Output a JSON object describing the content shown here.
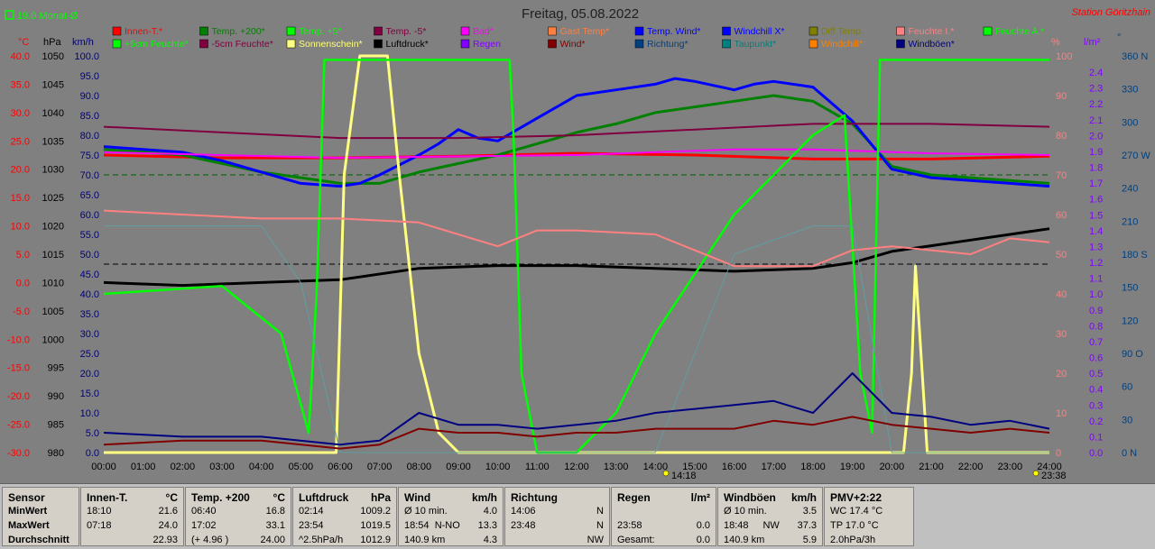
{
  "header": {
    "title": "Freitag, 05.08.2022",
    "station": "Station Göritzhain",
    "month_avg": "19.0 Monat-Ø"
  },
  "axes": {
    "temp_unit": "°C",
    "pressure_unit": "hPa",
    "speed_unit": "km/h",
    "percent_unit": "%",
    "rain_unit": "l/m²",
    "dir_unit": "°",
    "temp_ticks": [
      "40.0",
      "35.0",
      "30.0",
      "25.0",
      "20.0",
      "15.0",
      "10.0",
      "5.0",
      "0.0",
      "-5.0",
      "-10.0",
      "-15.0",
      "-20.0",
      "-25.0",
      "-30.0"
    ],
    "pressure_ticks": [
      "1050",
      "1045",
      "1040",
      "1035",
      "1030",
      "1025",
      "1020",
      "1015",
      "1010",
      "1005",
      "1000",
      "995",
      "990",
      "985",
      "980"
    ],
    "speed_ticks": [
      "100.0",
      "95.0",
      "90.0",
      "85.0",
      "80.0",
      "75.0",
      "70.0",
      "65.0",
      "60.0",
      "55.0",
      "50.0",
      "45.0",
      "40.0",
      "35.0",
      "30.0",
      "25.0",
      "20.0",
      "15.0",
      "10.0",
      "5.0",
      "0.0"
    ],
    "percent_ticks": [
      "100",
      "90",
      "80",
      "70",
      "60",
      "50",
      "40",
      "30",
      "20",
      "10",
      "0"
    ],
    "rain_ticks": [
      "2.4",
      "2.3",
      "2.2",
      "2.1",
      "2.0",
      "1.9",
      "1.8",
      "1.7",
      "1.6",
      "1.5",
      "1.4",
      "1.3",
      "1.2",
      "1.1",
      "1.0",
      "0.9",
      "0.8",
      "0.7",
      "0.6",
      "0.5",
      "0.4",
      "0.3",
      "0.2",
      "0.1",
      "0.0"
    ],
    "dir_ticks": [
      "360 N",
      "330",
      "300",
      "270 W",
      "240",
      "210",
      "180 S",
      "150",
      "120",
      "90 O",
      "60",
      "30",
      "0 N"
    ],
    "time_ticks": [
      "00:00",
      "01:00",
      "02:00",
      "03:00",
      "04:00",
      "05:00",
      "06:00",
      "07:00",
      "08:00",
      "09:00",
      "10:00",
      "11:00",
      "12:00",
      "13:00",
      "14:00",
      "15:00",
      "16:00",
      "17:00",
      "18:00",
      "19:00",
      "20:00",
      "21:00",
      "22:00",
      "23:00",
      "24:00"
    ],
    "sunrise_label": "14:18",
    "sunset_label": "23:38"
  },
  "legend": [
    {
      "label": "Innen-T.*",
      "color": "#ff0000"
    },
    {
      "label": "Temp. +200*",
      "color": "#008000"
    },
    {
      "label": "Temp. +5*",
      "color": "#00ff00"
    },
    {
      "label": "Temp. -5*",
      "color": "#800040"
    },
    {
      "label": "Bad*",
      "color": "#ff00ff"
    },
    {
      "label": "Gast Temp*",
      "color": "#ff8040"
    },
    {
      "label": "Temp. Wind*",
      "color": "#0000ff"
    },
    {
      "label": "Windchill X*",
      "color": "#0000ff"
    },
    {
      "label": "Diff Temp.",
      "color": "#808000"
    },
    {
      "label": "Feuchte I.*",
      "color": "#ff8080"
    },
    {
      "label": "Feuchte A.*",
      "color": "#00ff00"
    },
    {
      "label": "+5cm Feuchte*",
      "color": "#00ff00"
    },
    {
      "label": "-5cm Feuchte*",
      "color": "#800040"
    },
    {
      "label": "Sonnenschein*",
      "color": "#ffff80"
    },
    {
      "label": "Luftdruck*",
      "color": "#000000"
    },
    {
      "label": "Regen",
      "color": "#8000ff"
    },
    {
      "label": "Wind*",
      "color": "#800000"
    },
    {
      "label": "Richtung*",
      "color": "#004080"
    },
    {
      "label": "Taupunkt*",
      "color": "#008080"
    },
    {
      "label": "Windchill*",
      "color": "#ff8000"
    },
    {
      "label": "Windböen*",
      "color": "#000080"
    }
  ],
  "chart_data": {
    "type": "line",
    "x_unit": "hour of day",
    "xlim": [
      0,
      24
    ],
    "temp_ylim": [
      -30,
      40
    ],
    "pressure_ylim": [
      980,
      1050
    ],
    "speed_ylim": [
      0,
      100
    ],
    "percent_ylim": [
      0,
      100
    ],
    "series": [
      {
        "name": "Innen-T.*",
        "unit": "°C",
        "x": [
          0,
          3,
          6,
          9,
          12,
          15,
          18,
          21,
          24
        ],
        "y": [
          22.5,
          22.0,
          22.0,
          22.3,
          22.8,
          22.5,
          21.8,
          21.8,
          22.3
        ]
      },
      {
        "name": "Temp. +200*",
        "unit": "°C",
        "x": [
          0,
          2,
          3,
          4,
          5,
          6,
          7,
          8,
          9,
          10,
          11,
          12,
          13,
          14,
          15,
          16,
          17,
          18,
          19,
          20,
          21,
          22,
          23,
          24
        ],
        "y": [
          23.5,
          22.5,
          21.0,
          19.5,
          18.5,
          17.5,
          17.5,
          19.5,
          21.0,
          22.5,
          24.5,
          26.5,
          28.0,
          30.0,
          31.0,
          32.0,
          33.0,
          32.0,
          28.0,
          20.5,
          19.0,
          18.5,
          18.0,
          17.5
        ]
      },
      {
        "name": "Temp. Wind*",
        "unit": "°C",
        "x": [
          0,
          2,
          3,
          4,
          5,
          6,
          6.5,
          7,
          8,
          8.5,
          9,
          9.5,
          10,
          11,
          12,
          13,
          14,
          14.5,
          15,
          16,
          16.5,
          17,
          18,
          19,
          20,
          21,
          22,
          23,
          24
        ],
        "y": [
          24.0,
          23.0,
          21.5,
          19.5,
          17.5,
          17.0,
          17.5,
          19.0,
          22.5,
          24.5,
          27.0,
          25.5,
          25.0,
          29.0,
          33.0,
          34.0,
          35.0,
          36.0,
          35.5,
          34.0,
          35.0,
          35.5,
          34.5,
          28.5,
          20.0,
          18.5,
          18.0,
          17.5,
          17.0
        ]
      },
      {
        "name": "Temp. -5*",
        "unit": "°C",
        "x": [
          0,
          3,
          6,
          9,
          12,
          15,
          18,
          21,
          24
        ],
        "y": [
          27.5,
          26.5,
          25.5,
          25.5,
          26.0,
          27.0,
          28.0,
          28.0,
          27.5
        ]
      },
      {
        "name": "Bad*",
        "unit": "°C",
        "x": [
          0,
          6,
          12,
          16,
          18,
          21,
          24
        ],
        "y": [
          23.0,
          22.0,
          22.5,
          23.5,
          23.5,
          22.8,
          22.5
        ]
      },
      {
        "name": "Luftdruck*",
        "unit": "hPa",
        "x": [
          0,
          2,
          4,
          6,
          8,
          10,
          12,
          14,
          16,
          18,
          19,
          20,
          21,
          22,
          23,
          24
        ],
        "y": [
          1010.0,
          1009.5,
          1010.0,
          1010.5,
          1012.5,
          1013.0,
          1013.0,
          1012.5,
          1012.0,
          1012.5,
          1013.5,
          1015.5,
          1016.5,
          1017.5,
          1018.5,
          1019.5
        ]
      },
      {
        "name": "Sonnenschein*",
        "unit": "%",
        "x": [
          0,
          5.9,
          6.1,
          6.5,
          7.2,
          7.5,
          8.0,
          8.5,
          9,
          20.3,
          20.5,
          20.6,
          20.9,
          24
        ],
        "y": [
          0,
          0,
          70,
          100,
          100,
          70,
          25,
          5,
          0,
          0,
          20,
          47,
          0,
          0
        ]
      },
      {
        "name": "Feuchte A.*",
        "unit": "%",
        "x": [
          0,
          3,
          4.5,
          5.2,
          5.4,
          5.6,
          7,
          10.3,
          10.4,
          10.6,
          11,
          12,
          13,
          14,
          16,
          18,
          18.8,
          19.2,
          19.5,
          19.7,
          20,
          24
        ],
        "y": [
          40,
          42,
          30,
          5,
          40,
          99,
          99,
          99,
          80,
          20,
          0,
          0,
          10,
          30,
          60,
          80,
          85,
          20,
          5,
          99,
          99,
          99
        ]
      },
      {
        "name": "Feuchte I.*",
        "unit": "%",
        "x": [
          0,
          2,
          4,
          6,
          8,
          10,
          11,
          12,
          14,
          16,
          17,
          18,
          19,
          20,
          21,
          22,
          23,
          24
        ],
        "y": [
          61,
          60,
          59,
          59,
          58,
          52,
          56,
          56,
          55,
          47,
          47,
          47,
          51,
          52,
          51,
          50,
          54,
          53
        ]
      },
      {
        "name": "Taupunkt*",
        "unit": "°C",
        "x": [
          0,
          2,
          4,
          5,
          6,
          8,
          10,
          12,
          14,
          16,
          18,
          19,
          20,
          21,
          24
        ],
        "y": [
          10,
          10,
          10,
          0,
          -30,
          -30,
          -30,
          -30,
          -30,
          5,
          10,
          10,
          -30,
          -30,
          -30
        ]
      },
      {
        "name": "Windböen*",
        "unit": "km/h",
        "x": [
          0,
          2,
          4,
          6,
          7,
          8,
          9,
          10,
          11,
          12,
          13,
          14,
          15,
          16,
          17,
          18,
          19,
          20,
          21,
          22,
          23,
          24
        ],
        "y": [
          5,
          4,
          4,
          2,
          3,
          10,
          7,
          7,
          6,
          7,
          8,
          10,
          11,
          12,
          13,
          10,
          20,
          10,
          9,
          7,
          8,
          6
        ]
      },
      {
        "name": "Wind*",
        "unit": "km/h",
        "x": [
          0,
          2,
          4,
          6,
          7,
          8,
          9,
          10,
          11,
          12,
          13,
          14,
          15,
          16,
          17,
          18,
          19,
          20,
          21,
          22,
          23,
          24
        ],
        "y": [
          2,
          3,
          3,
          1,
          2,
          6,
          5,
          5,
          4,
          5,
          5,
          6,
          6,
          6,
          8,
          7,
          9,
          7,
          6,
          5,
          6,
          5
        ]
      }
    ]
  },
  "stats": {
    "sensor": {
      "title": "Sensor",
      "rows": [
        "MinWert",
        "MaxWert",
        "Durchschnitt"
      ]
    },
    "innen": {
      "title": "Innen-T.",
      "unit": "°C",
      "rows": [
        [
          "18:10",
          "21.6"
        ],
        [
          "07:18",
          "24.0"
        ],
        [
          "",
          "22.93"
        ]
      ]
    },
    "temp200": {
      "title": "Temp. +200",
      "unit": "°C",
      "rows": [
        [
          "06:40",
          "16.8"
        ],
        [
          "17:02",
          "33.1"
        ],
        [
          "(+ 4.96 )",
          "24.00"
        ]
      ]
    },
    "luftdruck": {
      "title": "Luftdruck",
      "unit": "hPa",
      "rows": [
        [
          "02:14",
          "1009.2"
        ],
        [
          "23:54",
          "1019.5"
        ],
        [
          "^2.5hPa/h",
          "1012.9"
        ]
      ]
    },
    "wind": {
      "title": "Wind",
      "unit": "km/h",
      "rows": [
        [
          "Ø 10 min.",
          "",
          "4.0"
        ],
        [
          "18:54",
          "N-NO",
          "13.3"
        ],
        [
          "140.9 km",
          "",
          "4.3"
        ]
      ]
    },
    "richtung": {
      "title": "Richtung",
      "unit": "",
      "rows": [
        [
          "14:06",
          "N"
        ],
        [
          "23:48",
          "N"
        ],
        [
          "",
          "NW"
        ]
      ]
    },
    "regen": {
      "title": "Regen",
      "unit": "l/m²",
      "rows": [
        [
          "",
          ""
        ],
        [
          "23:58",
          "0.0"
        ],
        [
          "Gesamt:",
          "0.0"
        ]
      ]
    },
    "windboeen": {
      "title": "Windböen",
      "unit": "km/h",
      "rows": [
        [
          "Ø 10 min.",
          "",
          "3.5"
        ],
        [
          "18:48",
          "NW",
          "37.3"
        ],
        [
          "140.9 km",
          "",
          "5.9"
        ]
      ]
    },
    "pmv": {
      "title": "PMV+2:22",
      "unit": "",
      "rows": [
        [
          "WC 17.4 °C"
        ],
        [
          "TP 17.0 °C"
        ],
        [
          "2.0hPa/3h"
        ]
      ]
    }
  }
}
